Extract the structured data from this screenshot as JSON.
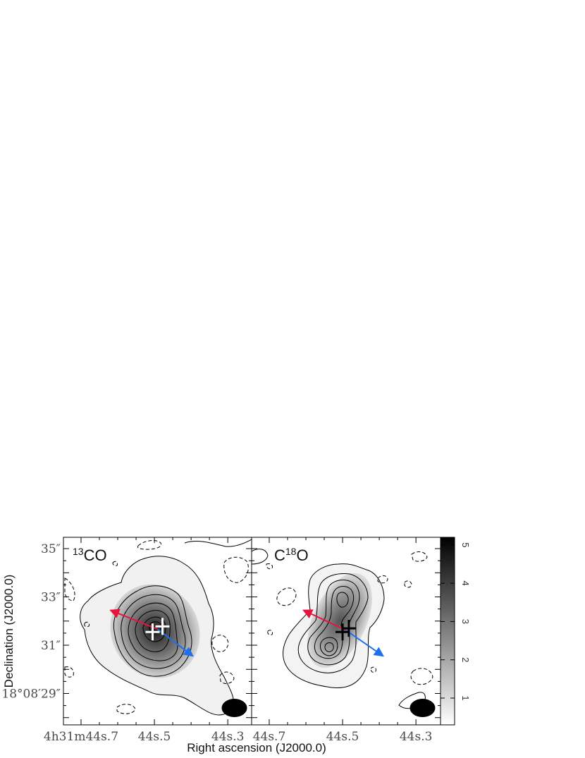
{
  "chart_data": {
    "type": "contour-map",
    "xlabel": "Right ascension (J2000.0)",
    "ylabel": "Declination (J2000.0)",
    "panels": [
      {
        "label": {
          "iso": "13",
          "main": "CO"
        },
        "x_ticks": [
          {
            "value": 44.7,
            "label": "4h31m44s.7"
          },
          {
            "value": 44.5,
            "label": "44s.5"
          },
          {
            "value": 44.3,
            "label": "44s.3"
          }
        ],
        "crosses_color": "#ffffff",
        "crosses": [
          {
            "ra": 44.505,
            "dec": 31.55
          },
          {
            "ra": 44.478,
            "dec": 31.78
          }
        ],
        "red_arrow_tip": {
          "ra": 44.62,
          "dec": 32.45
        },
        "blue_arrow_tip": {
          "ra": 44.395,
          "dec": 30.55
        },
        "beam_center": {
          "ra": 44.282,
          "dec": 28.4
        }
      },
      {
        "label": {
          "main_pre": "C",
          "iso": "18",
          "main_post": "O"
        },
        "x_ticks": [
          {
            "value": 44.7,
            "label": "44s.7"
          },
          {
            "value": 44.5,
            "label": "44s.5"
          },
          {
            "value": 44.3,
            "label": "44s.3"
          }
        ],
        "crosses_color": "#000000",
        "crosses": [
          {
            "ra": 44.5,
            "dec": 31.55
          },
          {
            "ra": 44.483,
            "dec": 31.7
          }
        ],
        "red_arrow_tip": {
          "ra": 44.607,
          "dec": 32.45
        },
        "blue_arrow_tip": {
          "ra": 44.389,
          "dec": 30.55
        },
        "beam_center": {
          "ra": 44.282,
          "dec": 28.4
        }
      }
    ],
    "y_ticks": [
      {
        "value": 35,
        "label": "35″"
      },
      {
        "value": 33,
        "label": "33″"
      },
      {
        "value": 31,
        "label": "31″"
      },
      {
        "value": 29,
        "label": "18°08′29″"
      }
    ],
    "colorbar": {
      "range": [
        0.3,
        5.2
      ],
      "ticks": [
        1,
        2,
        3,
        4,
        5
      ]
    },
    "colors": {
      "red_arrow": "#e8143c",
      "blue_arrow": "#1e6ff0",
      "beam": "#000000"
    }
  }
}
